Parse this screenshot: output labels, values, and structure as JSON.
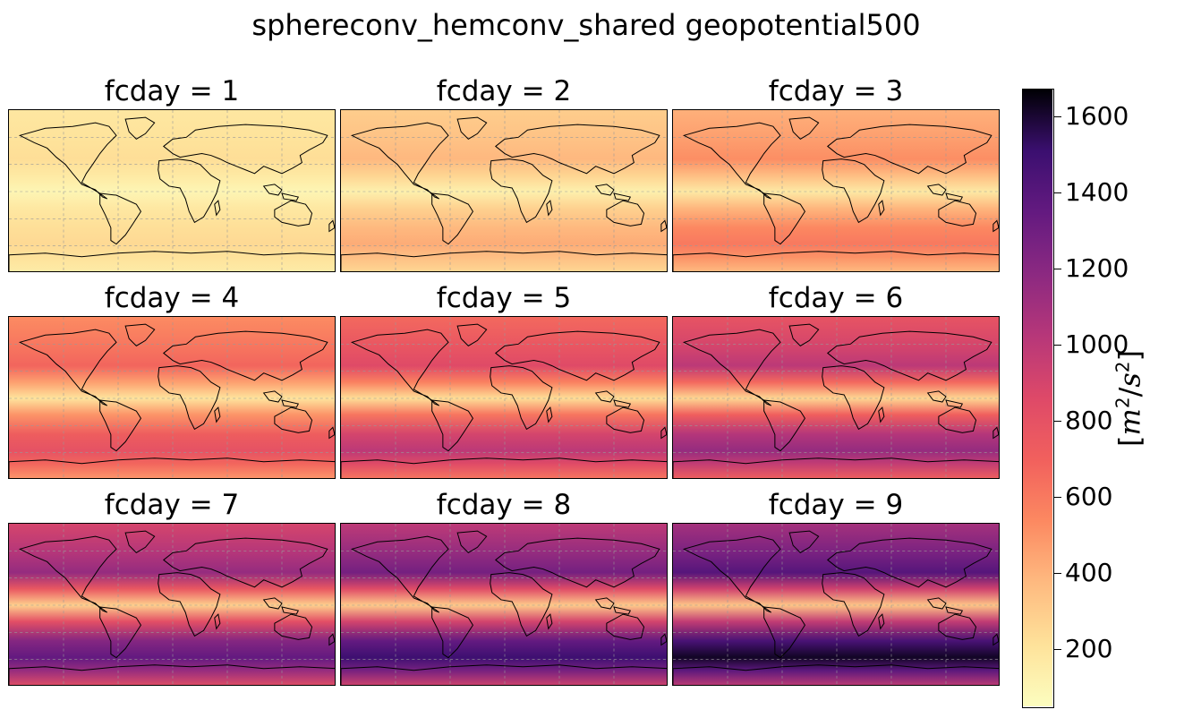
{
  "chart_data": {
    "type": "heatmap",
    "title": "sphereconv_hemconv_shared geopotential500",
    "panels": [
      {
        "title": "fcday = 1",
        "fcday": 1
      },
      {
        "title": "fcday = 2",
        "fcday": 2
      },
      {
        "title": "fcday = 3",
        "fcday": 3
      },
      {
        "title": "fcday = 4",
        "fcday": 4
      },
      {
        "title": "fcday = 5",
        "fcday": 5
      },
      {
        "title": "fcday = 6",
        "fcday": 6
      },
      {
        "title": "fcday = 7",
        "fcday": 7
      },
      {
        "title": "fcday = 8",
        "fcday": 8
      },
      {
        "title": "fcday = 9",
        "fcday": 9
      }
    ],
    "colorbar": {
      "colormap": "magma_r",
      "range": [
        50,
        1670
      ],
      "ticks": [
        200,
        400,
        600,
        800,
        1000,
        1200,
        1400,
        1600
      ],
      "tick_labels": [
        "200",
        "400",
        "600",
        "800",
        "1000",
        "1200",
        "1400",
        "1600"
      ],
      "label_parts": [
        "[",
        "m",
        "2",
        "/",
        "s",
        "2",
        "]"
      ]
    },
    "approx_zonal_values": [
      {
        "fcday": 1,
        "south_mid_lat": 250,
        "tropics": 100,
        "north_mid_lat": 230
      },
      {
        "fcday": 2,
        "south_mid_lat": 420,
        "tropics": 130,
        "north_mid_lat": 380
      },
      {
        "fcday": 3,
        "south_mid_lat": 600,
        "tropics": 170,
        "north_mid_lat": 520
      },
      {
        "fcday": 4,
        "south_mid_lat": 800,
        "tropics": 200,
        "north_mid_lat": 680
      },
      {
        "fcday": 5,
        "south_mid_lat": 1000,
        "tropics": 230,
        "north_mid_lat": 850
      },
      {
        "fcday": 6,
        "south_mid_lat": 1150,
        "tropics": 260,
        "north_mid_lat": 1000
      },
      {
        "fcday": 7,
        "south_mid_lat": 1350,
        "tropics": 290,
        "north_mid_lat": 1150
      },
      {
        "fcday": 8,
        "south_mid_lat": 1500,
        "tropics": 310,
        "north_mid_lat": 1280
      },
      {
        "fcday": 9,
        "south_mid_lat": 1620,
        "tropics": 330,
        "north_mid_lat": 1400
      }
    ],
    "gridlines": true
  }
}
